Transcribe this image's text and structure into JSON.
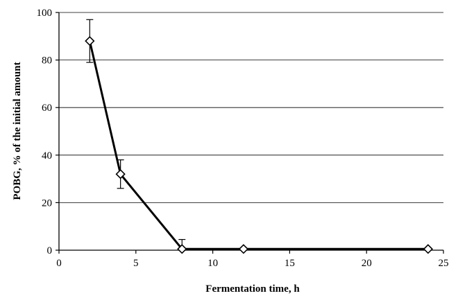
{
  "chart_data": {
    "type": "line",
    "title": "",
    "xlabel": "Fermentation time, h",
    "ylabel": "POBG, % of the initial amount",
    "xlim": [
      0,
      25
    ],
    "ylim": [
      0,
      100
    ],
    "xticks": [
      0,
      5,
      10,
      15,
      20,
      25
    ],
    "yticks": [
      0,
      20,
      40,
      60,
      80,
      100
    ],
    "grid": "horizontal",
    "legend": "none",
    "series": [
      {
        "marker": "diamond-open",
        "color": "#000000",
        "points": [
          {
            "x": 2,
            "y": 88,
            "err": 9
          },
          {
            "x": 4,
            "y": 32,
            "err": 6
          },
          {
            "x": 8,
            "y": 0.5,
            "err": 4
          },
          {
            "x": 12,
            "y": 0.5,
            "err": 0
          },
          {
            "x": 24,
            "y": 0.5,
            "err": 0
          }
        ]
      }
    ]
  }
}
